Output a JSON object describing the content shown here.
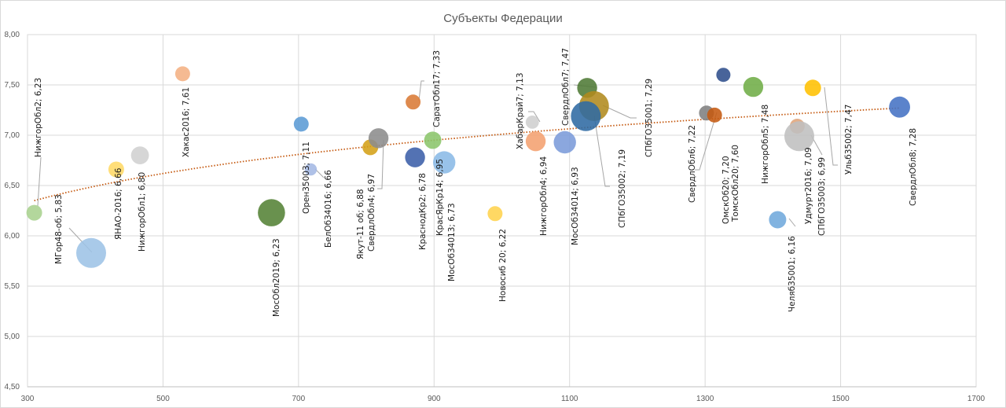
{
  "chart_data": {
    "type": "bubble",
    "title": "Субъекты Федерации",
    "xlabel": "",
    "ylabel": "",
    "xlim": [
      300,
      1700
    ],
    "ylim": [
      4.5,
      8.0
    ],
    "x_ticks": [
      "300",
      "500",
      "700",
      "900",
      "1100",
      "1300",
      "1500",
      "1700"
    ],
    "x_tick_values": [
      300,
      500,
      700,
      900,
      1100,
      1300,
      1500,
      1700
    ],
    "y_ticks": [
      "4,50",
      "5,00",
      "5,50",
      "6,00",
      "6,50",
      "7,00",
      "7,50",
      "8,00"
    ],
    "y_tick_values": [
      4.5,
      5.0,
      5.5,
      6.0,
      6.5,
      7.0,
      7.5,
      8.0
    ],
    "grid": true,
    "trendline": {
      "type": "logarithmic",
      "style": "dotted",
      "color": "#c55a11",
      "x_range": [
        310,
        1587
      ],
      "y_start": 6.35,
      "y_end": 7.27
    },
    "points": [
      {
        "label": "НижгорОбл2; 6,23",
        "x": 310,
        "y": 6.23,
        "size": 1.0,
        "color": "#a9d18e"
      },
      {
        "label": "МГор48-об; 5,83",
        "x": 394,
        "y": 5.83,
        "size": 3.6,
        "color": "#9dc3e6"
      },
      {
        "label": "ЯНАО-2016; 6,66",
        "x": 431,
        "y": 6.66,
        "size": 1.0,
        "color": "#ffd966"
      },
      {
        "label": "НижгорОбл1; 6,80",
        "x": 466,
        "y": 6.8,
        "size": 1.3,
        "color": "#d0d0d0"
      },
      {
        "label": "Хакас2016; 7,61",
        "x": 529,
        "y": 7.61,
        "size": 0.9,
        "color": "#f4b183"
      },
      {
        "label": "МосОбл2019; 6,23",
        "x": 660,
        "y": 6.23,
        "size": 3.0,
        "color": "#548235"
      },
      {
        "label": "Орен35003; 7,11",
        "x": 704,
        "y": 7.11,
        "size": 0.9,
        "color": "#5b9bd5"
      },
      {
        "label": "БелОб34016; 6,66",
        "x": 718,
        "y": 6.66,
        "size": 0.6,
        "color": "#a4b8e4"
      },
      {
        "label": "Якут-11 об; 6,88",
        "x": 806,
        "y": 6.88,
        "size": 1.0,
        "color": "#d4a017"
      },
      {
        "label": "СвердлОбл4; 6,97",
        "x": 818,
        "y": 6.97,
        "size": 1.6,
        "color": "#8c8c8c"
      },
      {
        "label": "КраснодКр2; 6,78",
        "x": 872,
        "y": 6.78,
        "size": 1.6,
        "color": "#3b5ea8"
      },
      {
        "label": "СаратОбл17; 7,33",
        "x": 869,
        "y": 7.33,
        "size": 0.9,
        "color": "#d97a35"
      },
      {
        "label": "КрасЯрКр14; 6,95",
        "x": 898,
        "y": 6.95,
        "size": 1.2,
        "color": "#8bc56b"
      },
      {
        "label": "МосОб34013; 6,73",
        "x": 915,
        "y": 6.73,
        "size": 2.0,
        "color": "#8ab9e6"
      },
      {
        "label": "Новосиб 20; 6,22",
        "x": 990,
        "y": 6.22,
        "size": 0.9,
        "color": "#ffd34d"
      },
      {
        "label": "ХабарКрай7; 7,13",
        "x": 1045,
        "y": 7.13,
        "size": 0.7,
        "color": "#cfcfcf"
      },
      {
        "label": "НижгорОбл4; 6,94",
        "x": 1050,
        "y": 6.94,
        "size": 1.6,
        "color": "#f4a070"
      },
      {
        "label": "МосОб34014; 6,93",
        "x": 1093,
        "y": 6.93,
        "size": 2.0,
        "color": "#7b9bd9"
      },
      {
        "label": "СвердлОбл7; 7,47",
        "x": 1126,
        "y": 7.47,
        "size": 1.6,
        "color": "#4f7a35"
      },
      {
        "label": "СПбГОЗ5001; 7,29",
        "x": 1136,
        "y": 7.29,
        "size": 3.6,
        "color": "#b08a1e"
      },
      {
        "label": "СПбГОЗ5002; 7,19",
        "x": 1124,
        "y": 7.19,
        "size": 3.6,
        "color": "#2f6aa3"
      },
      {
        "label": "СвердлОбл6; 7,22",
        "x": 1302,
        "y": 7.22,
        "size": 0.9,
        "color": "#7f7f7f"
      },
      {
        "label": "ОмскОб20; 7,20",
        "x": 1314,
        "y": 7.2,
        "size": 0.9,
        "color": "#c55a11"
      },
      {
        "label": "ТомскОбл20; 7,60",
        "x": 1327,
        "y": 7.6,
        "size": 0.8,
        "color": "#2f4f8c"
      },
      {
        "label": "НижгорОбл5; 7,48",
        "x": 1371,
        "y": 7.48,
        "size": 1.6,
        "color": "#70ad47"
      },
      {
        "label": "Челяб35001; 6,16",
        "x": 1407,
        "y": 6.16,
        "size": 1.2,
        "color": "#6fa8dc"
      },
      {
        "label": "Удмурт2016; 7,09",
        "x": 1436,
        "y": 7.09,
        "size": 0.9,
        "color": "#e0a47a"
      },
      {
        "label": "СПбГОЗ5003; 6,99",
        "x": 1439,
        "y": 6.99,
        "size": 3.6,
        "color": "#bfbfbf"
      },
      {
        "label": "Ульб35002; 7,47",
        "x": 1459,
        "y": 7.47,
        "size": 1.1,
        "color": "#ffc000"
      },
      {
        "label": "СвердлОбл8; 7,28",
        "x": 1587,
        "y": 7.28,
        "size": 1.8,
        "color": "#4472c4"
      }
    ]
  }
}
